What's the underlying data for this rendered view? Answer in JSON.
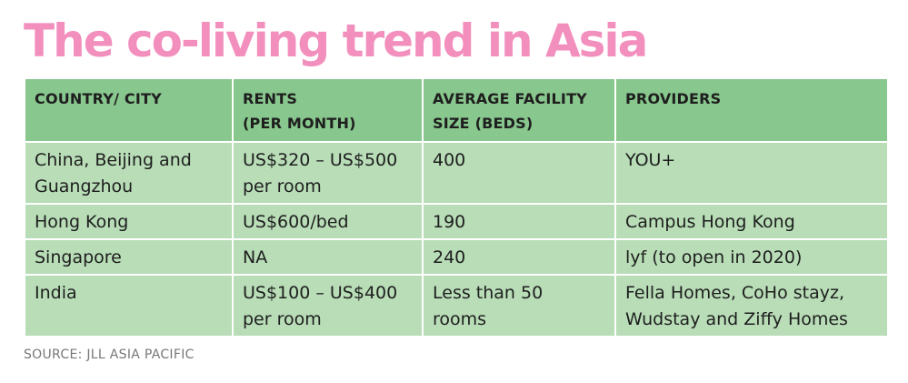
{
  "title": "The co-living trend in Asia",
  "table": {
    "headers": [
      "COUNTRY/ CITY",
      "RENTS\n(PER MONTH)",
      "AVERAGE FACILITY\nSIZE (BEDS)",
      "PROVIDERS"
    ],
    "rows": [
      [
        "China, Beijing and\nGuangzhou",
        "US$320 – US$500\nper room",
        "400",
        "YOU+"
      ],
      [
        "Hong Kong",
        "US$600/bed",
        "190",
        "Campus Hong Kong"
      ],
      [
        "Singapore",
        "NA",
        "240",
        "lyf (to open in 2020)"
      ],
      [
        "India",
        "US$100 – US$400\nper room",
        "Less than 50\nrooms",
        "Fella Homes, CoHo stayz,\nWudstay and Ziffy Homes"
      ]
    ]
  },
  "source": "SOURCE: JLL ASIA PACIFIC",
  "colors": {
    "title": "#f28fbd",
    "header_bg": "#88c78d",
    "cell_bg": "#b8ddb7",
    "source_text": "#777777"
  }
}
